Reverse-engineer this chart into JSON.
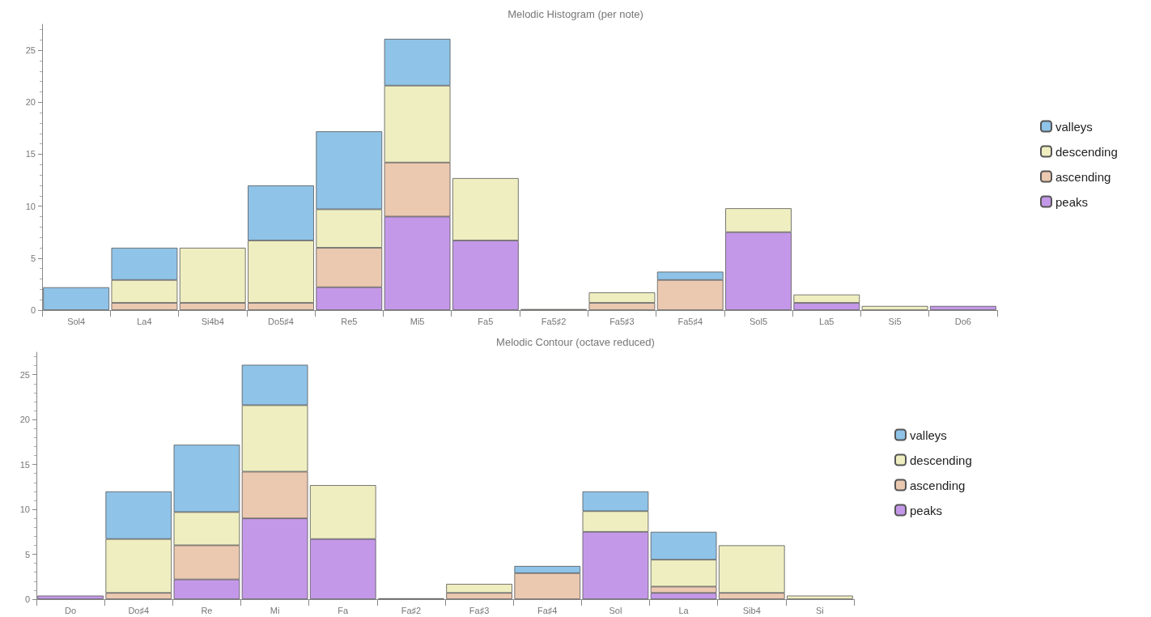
{
  "chart_data": [
    {
      "type": "bar",
      "title": "Melodic Histogram (per note)",
      "stacked": true,
      "legend": "right",
      "grid": false,
      "categories": [
        "Sol4",
        "La4",
        "Si4b4",
        "Do5♯4",
        "Re5",
        "Mi5",
        "Fa5",
        "Fa5♯2",
        "Fa5♯3",
        "Fa5♯4",
        "Sol5",
        "La5",
        "Si5",
        "Do6"
      ],
      "ylim": [
        0,
        27.5
      ],
      "yticks": [
        0,
        5,
        10,
        15,
        20,
        25
      ],
      "series": [
        {
          "name": "peaks",
          "color": "#c498e8",
          "values": [
            null,
            null,
            null,
            null,
            2.2,
            9.0,
            6.7,
            null,
            null,
            null,
            7.5,
            0.7,
            null,
            0.4
          ]
        },
        {
          "name": "ascending",
          "color": "#ebc8b0",
          "values": [
            null,
            0.7,
            0.7,
            0.7,
            3.8,
            5.2,
            null,
            null,
            0.7,
            2.9,
            null,
            null,
            null,
            null
          ]
        },
        {
          "name": "descending",
          "color": "#eeeec0",
          "values": [
            null,
            2.2,
            5.3,
            6.0,
            3.7,
            7.4,
            6.0,
            0.1,
            1.0,
            null,
            2.3,
            0.8,
            0.4,
            null
          ]
        },
        {
          "name": "valleys",
          "color": "#8fc3e8",
          "values": [
            2.2,
            3.1,
            null,
            5.3,
            7.5,
            4.5,
            null,
            null,
            null,
            0.8,
            null,
            null,
            null,
            null
          ]
        }
      ]
    },
    {
      "type": "bar",
      "title": "Melodic Contour (octave reduced)",
      "stacked": true,
      "legend": "right",
      "grid": false,
      "categories": [
        "Do",
        "Do♯4",
        "Re",
        "Mi",
        "Fa",
        "Fa♯2",
        "Fa♯3",
        "Fa♯4",
        "Sol",
        "La",
        "Sib4",
        "Si"
      ],
      "ylim": [
        0,
        27.5
      ],
      "yticks": [
        0,
        5,
        10,
        15,
        20,
        25
      ],
      "series": [
        {
          "name": "peaks",
          "color": "#c498e8",
          "values": [
            0.4,
            null,
            2.2,
            9.0,
            6.7,
            null,
            null,
            null,
            7.5,
            0.7,
            null,
            null
          ]
        },
        {
          "name": "ascending",
          "color": "#ebc8b0",
          "values": [
            null,
            0.7,
            3.8,
            5.2,
            null,
            null,
            0.7,
            2.9,
            null,
            0.7,
            0.7,
            null
          ]
        },
        {
          "name": "descending",
          "color": "#eeeec0",
          "values": [
            null,
            6.0,
            3.7,
            7.4,
            6.0,
            0.1,
            1.0,
            null,
            2.3,
            3.0,
            5.3,
            0.4
          ]
        },
        {
          "name": "valleys",
          "color": "#8fc3e8",
          "values": [
            null,
            5.3,
            7.5,
            4.5,
            null,
            null,
            null,
            0.8,
            2.2,
            3.1,
            null,
            null
          ]
        }
      ]
    }
  ]
}
